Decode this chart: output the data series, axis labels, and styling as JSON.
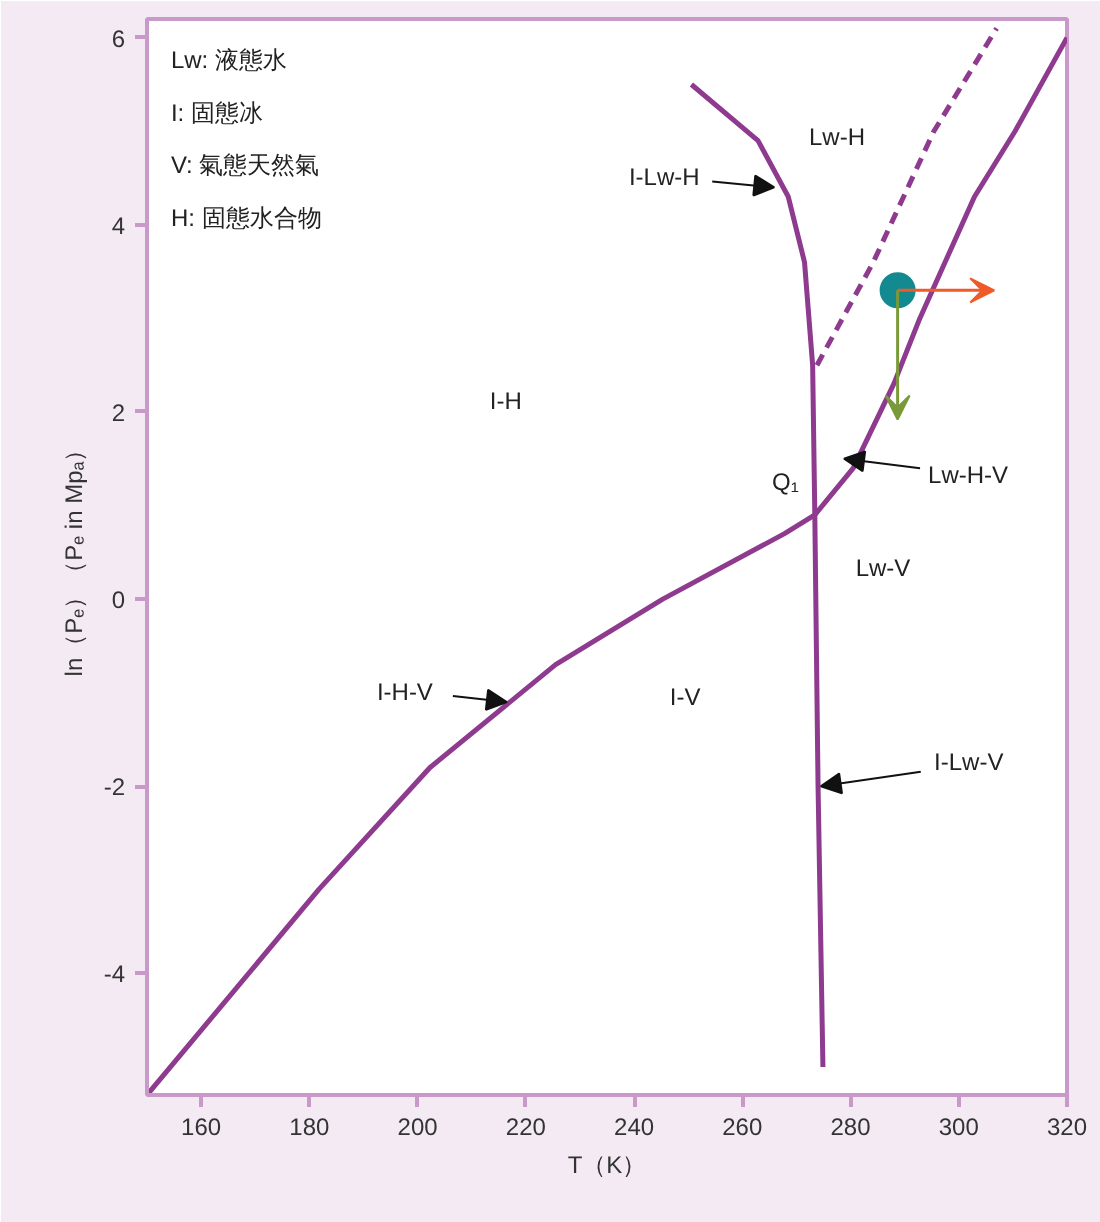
{
  "chart_data": {
    "type": "line",
    "xlabel": "T（K）",
    "ylabel": "ln（Pₑ）（Pₑ in Mpₐ）",
    "xlim": [
      150,
      320
    ],
    "ylim": [
      -5.3,
      6.2
    ],
    "xticks": [
      160,
      180,
      200,
      220,
      240,
      260,
      280,
      300,
      320
    ],
    "yticks": [
      -4,
      -2,
      0,
      2,
      4,
      6
    ],
    "grid": false,
    "series": [
      {
        "color": "#8e3a8e",
        "x": [
          150,
          181.8,
          202.3,
          225.5,
          245.3,
          267.8,
          273.4,
          280.5,
          288,
          292.8,
          302.9,
          310.4,
          320
        ],
        "values": [
          -5.3,
          -3.1,
          -1.8,
          -0.7,
          0,
          0.7,
          0.9,
          1.4,
          2.3,
          3.0,
          4.3,
          5.0,
          6.0
        ]
      },
      {
        "color": "#8e3a8e",
        "x": [
          250.6,
          262.9,
          268.5,
          271.5,
          273,
          273.4,
          274,
          274.9
        ],
        "values": [
          5.5,
          4.9,
          4.3,
          3.6,
          2.5,
          0.9,
          -2,
          -5
        ]
      },
      {
        "color": "#8e3a8e",
        "line_style": "dashed",
        "x": [
          273.8,
          284.2,
          295.4,
          307
        ],
        "values": [
          2.5,
          3.6,
          5.0,
          6.1
        ]
      },
      {
        "type": "scatter",
        "marker": "circle",
        "color": "#138a8f",
        "x": [
          288.7
        ],
        "values": [
          3.3
        ]
      }
    ],
    "annotations": [
      "Lw: 液態水",
      "I: 固態冰",
      "V: 氣態天然氣",
      "H: 固態水合物",
      "Lw-H",
      {
        "text": "I-Lw-H",
        "x": 265.9,
        "y": 4.4
      },
      "I-H",
      {
        "text": "Lw-H-V",
        "x": 278.8,
        "y": 1.5
      },
      "Q₁",
      "Lw-V",
      {
        "text": "I-H-V",
        "x": 216.5,
        "y": -1.1
      },
      "I-V",
      {
        "text": "I-Lw-V",
        "x": 274.5,
        "y": -2.0
      }
    ]
  }
}
